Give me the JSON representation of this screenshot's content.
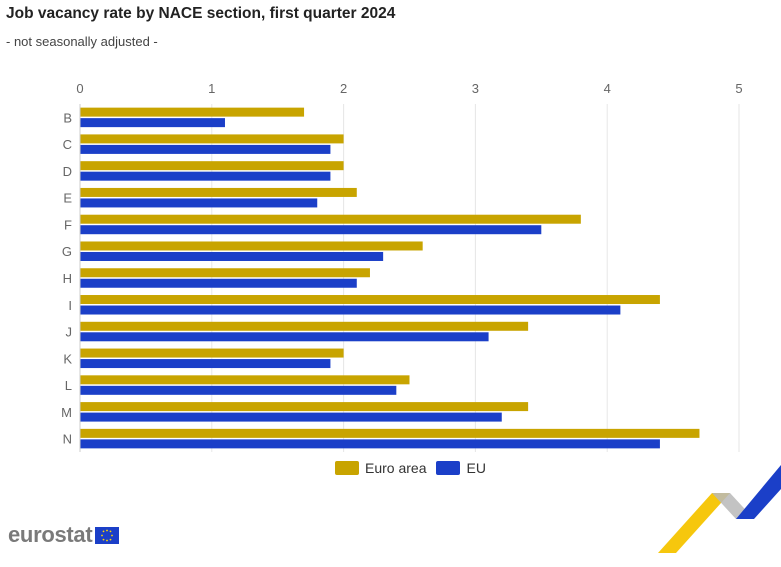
{
  "header": {
    "title": "Job vacancy rate by NACE section, first quarter 2024",
    "subtitle": "- not seasonally adjusted -"
  },
  "legend": {
    "euro_area": "Euro area",
    "eu": "EU"
  },
  "logo": {
    "text": "eurostat"
  },
  "colors": {
    "euro_area": "#c8a400",
    "eu": "#1b3fc8",
    "grid": "#e6e6e6"
  },
  "chart_data": {
    "type": "bar",
    "orientation": "horizontal",
    "title": "Job vacancy rate by NACE section, first quarter 2024",
    "subtitle": "- not seasonally adjusted -",
    "categories": [
      "B",
      "C",
      "D",
      "E",
      "F",
      "G",
      "H",
      "I",
      "J",
      "K",
      "L",
      "M",
      "N"
    ],
    "series": [
      {
        "name": "Euro area",
        "values": [
          1.7,
          2.0,
          2.0,
          2.1,
          3.8,
          2.6,
          2.2,
          4.4,
          3.4,
          2.0,
          2.5,
          3.4,
          4.7
        ]
      },
      {
        "name": "EU",
        "values": [
          1.1,
          1.9,
          1.9,
          1.8,
          3.5,
          2.3,
          2.1,
          4.1,
          3.1,
          1.9,
          2.4,
          3.2,
          4.4
        ]
      }
    ],
    "xticks": [
      "0",
      "1",
      "2",
      "3",
      "4",
      "5"
    ],
    "xlim": [
      0,
      5
    ],
    "xaxis_position": "top",
    "grid": true,
    "legend_position": "bottom"
  }
}
